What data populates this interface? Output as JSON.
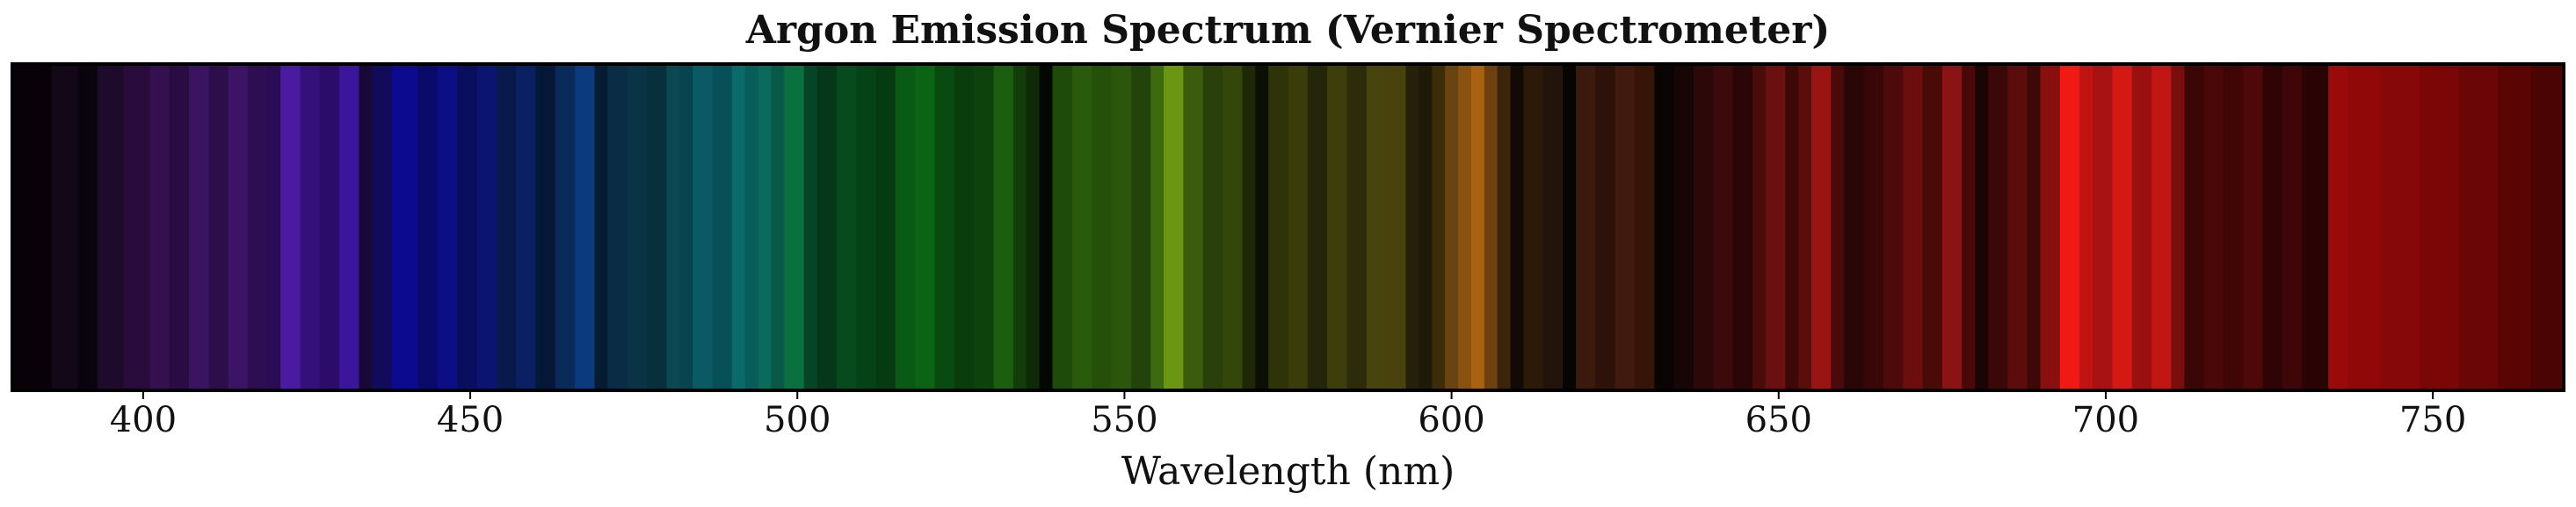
{
  "chart_data": {
    "type": "heatmap",
    "title": "Argon Emission Spectrum (Vernier Spectrometer)",
    "xlabel": "Wavelength (nm)",
    "ylabel": "",
    "xlim": [
      380,
      770
    ],
    "xticks": [
      400,
      450,
      500,
      550,
      600,
      650,
      700,
      750
    ],
    "grid": false,
    "bands": [
      {
        "start": 380,
        "end": 386,
        "color": "#080208"
      },
      {
        "start": 386,
        "end": 390,
        "color": "#120818"
      },
      {
        "start": 390,
        "end": 393,
        "color": "#0a040e"
      },
      {
        "start": 393,
        "end": 397,
        "color": "#1e0a2a"
      },
      {
        "start": 397,
        "end": 401,
        "color": "#2a0c3c"
      },
      {
        "start": 401,
        "end": 404,
        "color": "#34104e"
      },
      {
        "start": 404,
        "end": 407,
        "color": "#2a0c44"
      },
      {
        "start": 407,
        "end": 410,
        "color": "#3a1460"
      },
      {
        "start": 410,
        "end": 413,
        "color": "#2c0e4a"
      },
      {
        "start": 413,
        "end": 416,
        "color": "#3c1466"
      },
      {
        "start": 416,
        "end": 419,
        "color": "#2e0e52"
      },
      {
        "start": 419,
        "end": 421,
        "color": "#2a0c56"
      },
      {
        "start": 421,
        "end": 424,
        "color": "#4a1aa0"
      },
      {
        "start": 424,
        "end": 427,
        "color": "#34107a"
      },
      {
        "start": 427,
        "end": 430,
        "color": "#2c0c6a"
      },
      {
        "start": 430,
        "end": 433,
        "color": "#3c169a"
      },
      {
        "start": 433,
        "end": 435,
        "color": "#180838"
      },
      {
        "start": 435,
        "end": 438,
        "color": "#120a5a"
      },
      {
        "start": 438,
        "end": 442,
        "color": "#0c0a8e"
      },
      {
        "start": 442,
        "end": 445,
        "color": "#0a0a6a"
      },
      {
        "start": 445,
        "end": 448,
        "color": "#0c0e86"
      },
      {
        "start": 448,
        "end": 451,
        "color": "#0a0e5e"
      },
      {
        "start": 451,
        "end": 454,
        "color": "#0c1472"
      },
      {
        "start": 454,
        "end": 457,
        "color": "#081a4c"
      },
      {
        "start": 457,
        "end": 460,
        "color": "#0a2062"
      },
      {
        "start": 460,
        "end": 463,
        "color": "#061838"
      },
      {
        "start": 463,
        "end": 466,
        "color": "#0a2a5a"
      },
      {
        "start": 466,
        "end": 469,
        "color": "#0c3a7e"
      },
      {
        "start": 469,
        "end": 471,
        "color": "#061c30"
      },
      {
        "start": 471,
        "end": 474,
        "color": "#0a2c44"
      },
      {
        "start": 474,
        "end": 477,
        "color": "#0a3446"
      },
      {
        "start": 477,
        "end": 480,
        "color": "#08303c"
      },
      {
        "start": 480,
        "end": 482,
        "color": "#0a4852"
      },
      {
        "start": 482,
        "end": 484,
        "color": "#084450"
      },
      {
        "start": 484,
        "end": 487,
        "color": "#0a5a64"
      },
      {
        "start": 487,
        "end": 490,
        "color": "#085058"
      },
      {
        "start": 490,
        "end": 492,
        "color": "#0a6a6a"
      },
      {
        "start": 492,
        "end": 494,
        "color": "#085c5a"
      },
      {
        "start": 494,
        "end": 496,
        "color": "#0a6a5c"
      },
      {
        "start": 496,
        "end": 498,
        "color": "#0a5846"
      },
      {
        "start": 498,
        "end": 501,
        "color": "#0a7040"
      },
      {
        "start": 501,
        "end": 503,
        "color": "#064428"
      },
      {
        "start": 503,
        "end": 506,
        "color": "#05381a"
      },
      {
        "start": 506,
        "end": 509,
        "color": "#064a1e"
      },
      {
        "start": 509,
        "end": 512,
        "color": "#054216"
      },
      {
        "start": 512,
        "end": 515,
        "color": "#063a10"
      },
      {
        "start": 515,
        "end": 518,
        "color": "#085a14"
      },
      {
        "start": 518,
        "end": 521,
        "color": "#0a6414"
      },
      {
        "start": 521,
        "end": 524,
        "color": "#084a10"
      },
      {
        "start": 524,
        "end": 527,
        "color": "#0a3c0c"
      },
      {
        "start": 527,
        "end": 530,
        "color": "#0e420c"
      },
      {
        "start": 530,
        "end": 533,
        "color": "#1c5e10"
      },
      {
        "start": 533,
        "end": 535,
        "color": "#143c0a"
      },
      {
        "start": 535,
        "end": 537,
        "color": "#0e2a06"
      },
      {
        "start": 537,
        "end": 539,
        "color": "#030802"
      },
      {
        "start": 539,
        "end": 542,
        "color": "#1e4a0a"
      },
      {
        "start": 542,
        "end": 545,
        "color": "#2a5a0c"
      },
      {
        "start": 545,
        "end": 548,
        "color": "#24500a"
      },
      {
        "start": 548,
        "end": 551,
        "color": "#2c560c"
      },
      {
        "start": 551,
        "end": 554,
        "color": "#22440a"
      },
      {
        "start": 554,
        "end": 556,
        "color": "#3c6a10"
      },
      {
        "start": 556,
        "end": 559,
        "color": "#6a9614"
      },
      {
        "start": 559,
        "end": 562,
        "color": "#3a5c0c"
      },
      {
        "start": 562,
        "end": 565,
        "color": "#2a400a"
      },
      {
        "start": 565,
        "end": 568,
        "color": "#34460a"
      },
      {
        "start": 568,
        "end": 570,
        "color": "#1e2806"
      },
      {
        "start": 570,
        "end": 572,
        "color": "#0c1004"
      },
      {
        "start": 572,
        "end": 575,
        "color": "#2e3408"
      },
      {
        "start": 575,
        "end": 578,
        "color": "#3a3c0a"
      },
      {
        "start": 578,
        "end": 581,
        "color": "#24260a"
      },
      {
        "start": 581,
        "end": 584,
        "color": "#3e3e0c"
      },
      {
        "start": 584,
        "end": 587,
        "color": "#2c2c0a"
      },
      {
        "start": 587,
        "end": 590,
        "color": "#48440e"
      },
      {
        "start": 590,
        "end": 593,
        "color": "#4a420e"
      },
      {
        "start": 593,
        "end": 595,
        "color": "#24200a"
      },
      {
        "start": 595,
        "end": 597,
        "color": "#1e1a08"
      },
      {
        "start": 597,
        "end": 599,
        "color": "#3c2c08"
      },
      {
        "start": 599,
        "end": 601,
        "color": "#6a4410"
      },
      {
        "start": 601,
        "end": 603,
        "color": "#8a5210"
      },
      {
        "start": 603,
        "end": 605,
        "color": "#a86212"
      },
      {
        "start": 605,
        "end": 607,
        "color": "#6e4010"
      },
      {
        "start": 607,
        "end": 609,
        "color": "#3c240a"
      },
      {
        "start": 609,
        "end": 611,
        "color": "#120a04"
      },
      {
        "start": 611,
        "end": 614,
        "color": "#2c1a08"
      },
      {
        "start": 614,
        "end": 617,
        "color": "#22140a"
      },
      {
        "start": 617,
        "end": 619,
        "color": "#080402"
      },
      {
        "start": 619,
        "end": 622,
        "color": "#3a1a0c"
      },
      {
        "start": 622,
        "end": 625,
        "color": "#2c1208"
      },
      {
        "start": 625,
        "end": 628,
        "color": "#401a0e"
      },
      {
        "start": 628,
        "end": 631,
        "color": "#361408"
      },
      {
        "start": 631,
        "end": 634,
        "color": "#0a0404"
      },
      {
        "start": 634,
        "end": 637,
        "color": "#180606"
      },
      {
        "start": 637,
        "end": 640,
        "color": "#2c0808"
      },
      {
        "start": 640,
        "end": 643,
        "color": "#3c0a0a"
      },
      {
        "start": 643,
        "end": 646,
        "color": "#2a0606"
      },
      {
        "start": 646,
        "end": 648,
        "color": "#4a0c0a"
      },
      {
        "start": 648,
        "end": 651,
        "color": "#6a1010"
      },
      {
        "start": 651,
        "end": 653,
        "color": "#3c0808"
      },
      {
        "start": 653,
        "end": 655,
        "color": "#5a0e0c"
      },
      {
        "start": 655,
        "end": 658,
        "color": "#9a1414"
      },
      {
        "start": 658,
        "end": 660,
        "color": "#4a0a0a"
      },
      {
        "start": 660,
        "end": 663,
        "color": "#2a0606"
      },
      {
        "start": 663,
        "end": 666,
        "color": "#380808"
      },
      {
        "start": 666,
        "end": 669,
        "color": "#4e0a0a"
      },
      {
        "start": 669,
        "end": 672,
        "color": "#6c0e0e"
      },
      {
        "start": 672,
        "end": 675,
        "color": "#4a0a08"
      },
      {
        "start": 675,
        "end": 678,
        "color": "#8a1414"
      },
      {
        "start": 678,
        "end": 680,
        "color": "#4a0808"
      },
      {
        "start": 680,
        "end": 682,
        "color": "#1a0404"
      },
      {
        "start": 682,
        "end": 685,
        "color": "#3a0808"
      },
      {
        "start": 685,
        "end": 688,
        "color": "#5c0c0a"
      },
      {
        "start": 688,
        "end": 690,
        "color": "#3c0808"
      },
      {
        "start": 690,
        "end": 693,
        "color": "#8a1010"
      },
      {
        "start": 693,
        "end": 696,
        "color": "#f01a14"
      },
      {
        "start": 696,
        "end": 698,
        "color": "#c01412"
      },
      {
        "start": 698,
        "end": 701,
        "color": "#a81212"
      },
      {
        "start": 701,
        "end": 704,
        "color": "#d41814"
      },
      {
        "start": 704,
        "end": 707,
        "color": "#9a1010"
      },
      {
        "start": 707,
        "end": 710,
        "color": "#c01614"
      },
      {
        "start": 710,
        "end": 712,
        "color": "#7a0e0c"
      },
      {
        "start": 712,
        "end": 715,
        "color": "#3a0606"
      },
      {
        "start": 715,
        "end": 718,
        "color": "#4a0808"
      },
      {
        "start": 718,
        "end": 721,
        "color": "#3e0606"
      },
      {
        "start": 721,
        "end": 724,
        "color": "#4e0808"
      },
      {
        "start": 724,
        "end": 727,
        "color": "#300404"
      },
      {
        "start": 727,
        "end": 730,
        "color": "#3e0606"
      },
      {
        "start": 730,
        "end": 734,
        "color": "#2a0404"
      },
      {
        "start": 734,
        "end": 737,
        "color": "#9a0a0a"
      },
      {
        "start": 737,
        "end": 742,
        "color": "#900808"
      },
      {
        "start": 742,
        "end": 748,
        "color": "#860808"
      },
      {
        "start": 748,
        "end": 754,
        "color": "#7a0606"
      },
      {
        "start": 754,
        "end": 760,
        "color": "#6a0606"
      },
      {
        "start": 760,
        "end": 765,
        "color": "#5a0404"
      },
      {
        "start": 765,
        "end": 770,
        "color": "#4a0404"
      }
    ]
  }
}
